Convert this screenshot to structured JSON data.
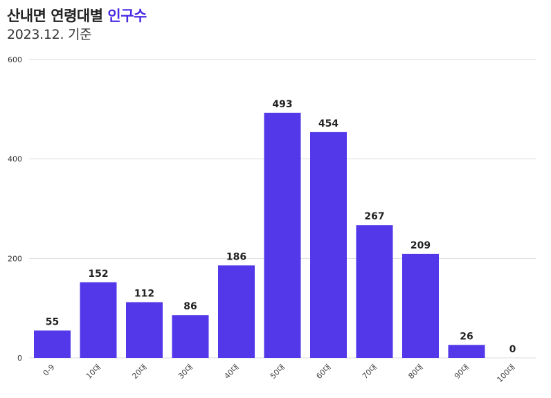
{
  "header": {
    "title_main": "산내면 연령대별",
    "title_accent": "인구수",
    "subtitle": "2023.12. 기준"
  },
  "colors": {
    "bar": "#5238e8",
    "accent": "#4b2be6",
    "grid": "#dddddd"
  },
  "chart_data": {
    "type": "bar",
    "categories": [
      "0-9",
      "10대",
      "20대",
      "30대",
      "40대",
      "50대",
      "60대",
      "70대",
      "80대",
      "90대",
      "100대"
    ],
    "values": [
      55,
      152,
      112,
      86,
      186,
      493,
      454,
      267,
      209,
      26,
      0
    ],
    "ylim": [
      0,
      600
    ],
    "yticks": [
      0,
      200,
      400,
      600
    ],
    "grid": true
  }
}
